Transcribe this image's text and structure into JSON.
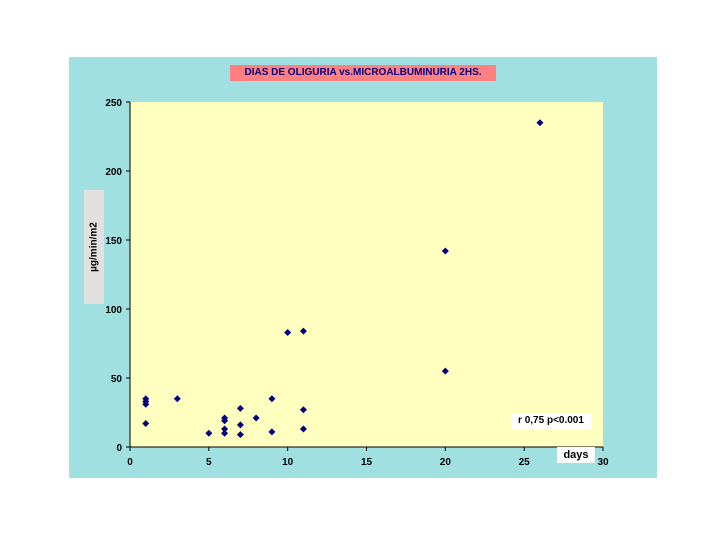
{
  "chart_data": {
    "type": "scatter",
    "title": "DIAS DE OLIGURIA vs.MICROALBUMINURIA 2HS.",
    "xlabel": "days",
    "ylabel": "µg/min/m2",
    "annotation": "r 0,75 p<0.001",
    "xlim": [
      0,
      30
    ],
    "ylim": [
      0,
      250
    ],
    "x_ticks": [
      0,
      5,
      10,
      15,
      20,
      25,
      30
    ],
    "y_ticks": [
      0,
      50,
      100,
      150,
      200,
      250
    ],
    "grid": false,
    "colors": {
      "panel": "#a0e0e0",
      "plot_area": "#ffffc0",
      "marker": "#000080",
      "title_bg": "#ff8080"
    },
    "series": [
      {
        "marker": "diamond",
        "points": [
          {
            "x": 1,
            "y": 35
          },
          {
            "x": 1,
            "y": 33
          },
          {
            "x": 1,
            "y": 31
          },
          {
            "x": 1,
            "y": 17
          },
          {
            "x": 3,
            "y": 35
          },
          {
            "x": 5,
            "y": 10
          },
          {
            "x": 6,
            "y": 21
          },
          {
            "x": 6,
            "y": 19
          },
          {
            "x": 6,
            "y": 13
          },
          {
            "x": 6,
            "y": 10
          },
          {
            "x": 7,
            "y": 28
          },
          {
            "x": 7,
            "y": 16
          },
          {
            "x": 7,
            "y": 9
          },
          {
            "x": 8,
            "y": 21
          },
          {
            "x": 9,
            "y": 35
          },
          {
            "x": 9,
            "y": 11
          },
          {
            "x": 10,
            "y": 83
          },
          {
            "x": 11,
            "y": 84
          },
          {
            "x": 11,
            "y": 27
          },
          {
            "x": 11,
            "y": 13
          },
          {
            "x": 20,
            "y": 142
          },
          {
            "x": 20,
            "y": 55
          },
          {
            "x": 26,
            "y": 235
          }
        ]
      }
    ]
  }
}
